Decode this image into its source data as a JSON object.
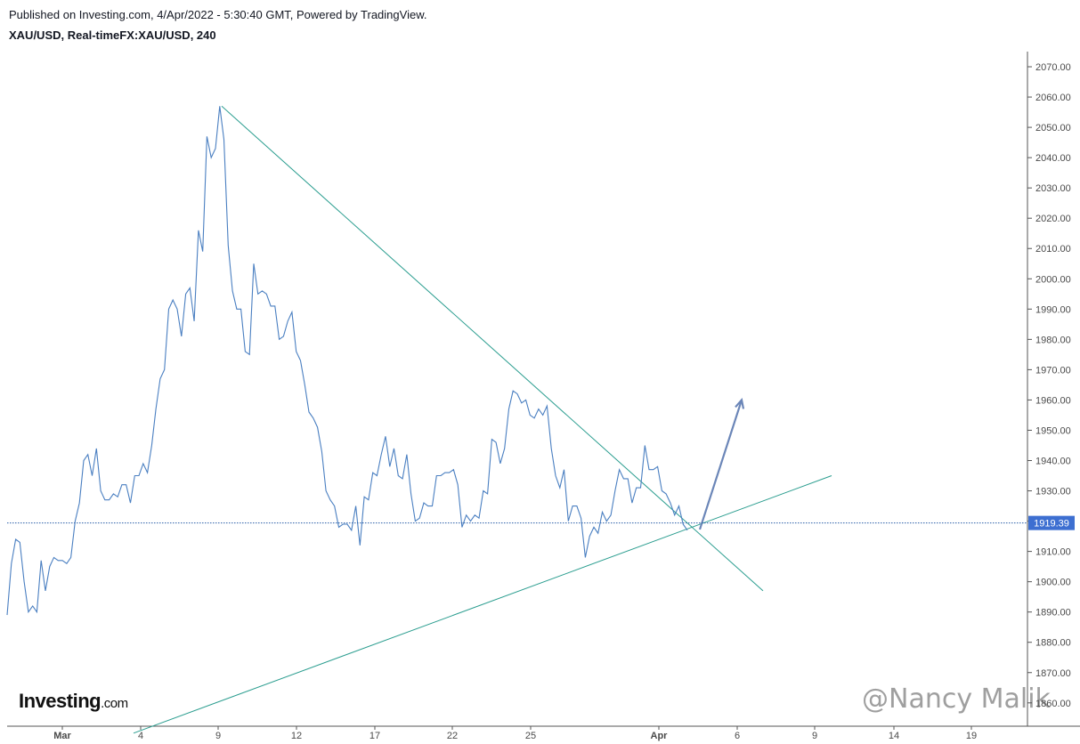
{
  "header": {
    "published": "Published on Investing.com, 4/Apr/2022 - 5:30:40 GMT, Powered by TradingView.",
    "symbol_line": "XAU/USD, Real-timeFX:XAU/USD, 240"
  },
  "brand": {
    "name": "Investing",
    "suffix": ".com"
  },
  "watermark": "@Nancy Malik",
  "colors": {
    "price_line": "#4a7fc1",
    "trendline": "#2a9d8f",
    "arrow": "#6b86b8",
    "price_marker_bg": "#3d6fd1",
    "price_marker_text": "#ffffff",
    "dotted_line": "#2b5fa8"
  },
  "chart_data": {
    "type": "line",
    "current_price": "1919.39",
    "current_price_value": 1919.39,
    "ylim": [
      1850,
      2080
    ],
    "y_ticks": [
      "2070.00",
      "2060.00",
      "2050.00",
      "2040.00",
      "2030.00",
      "2020.00",
      "2010.00",
      "2000.00",
      "1990.00",
      "1980.00",
      "1970.00",
      "1960.00",
      "1950.00",
      "1940.00",
      "1930.00",
      "1920.00",
      "1910.00",
      "1900.00",
      "1890.00",
      "1880.00",
      "1870.00",
      "1860.00"
    ],
    "x_ticks": [
      {
        "label": "Mar",
        "bold": true
      },
      {
        "label": "4",
        "bold": false
      },
      {
        "label": "9",
        "bold": false
      },
      {
        "label": "12",
        "bold": false
      },
      {
        "label": "17",
        "bold": false
      },
      {
        "label": "22",
        "bold": false
      },
      {
        "label": "25",
        "bold": false
      },
      {
        "label": "Apr",
        "bold": true
      },
      {
        "label": "6",
        "bold": false
      },
      {
        "label": "9",
        "bold": false
      },
      {
        "label": "14",
        "bold": false
      },
      {
        "label": "19",
        "bold": false
      }
    ],
    "series": [
      {
        "values": [
          1889,
          1906,
          1914,
          1913,
          1900,
          1890,
          1892,
          1890,
          1907,
          1897,
          1905,
          1908,
          1907,
          1907,
          1906,
          1908,
          1920,
          1926,
          1940,
          1942,
          1935,
          1944,
          1930,
          1927,
          1927,
          1929,
          1928,
          1932,
          1932,
          1926,
          1935,
          1935,
          1939,
          1936,
          1945,
          1957,
          1967,
          1970,
          1990,
          1993,
          1990,
          1981,
          1995,
          1997,
          1986,
          2016,
          2009,
          2047,
          2040,
          2043,
          2057,
          2046,
          2011,
          1996,
          1990,
          1990,
          1976,
          1975,
          2005,
          1995,
          1996,
          1995,
          1991,
          1991,
          1980,
          1981,
          1986,
          1989,
          1976,
          1973,
          1965,
          1956,
          1954,
          1951,
          1943,
          1930,
          1927,
          1925,
          1918,
          1919,
          1919,
          1917,
          1925,
          1912,
          1928,
          1927,
          1936,
          1935,
          1942,
          1948,
          1938,
          1944,
          1935,
          1934,
          1942,
          1929,
          1920,
          1921,
          1926,
          1925,
          1925,
          1935,
          1935,
          1936,
          1936,
          1937,
          1932,
          1918,
          1922,
          1920,
          1922,
          1921,
          1930,
          1929,
          1947,
          1946,
          1939,
          1944,
          1957,
          1963,
          1962,
          1959,
          1960,
          1955,
          1954,
          1957,
          1955,
          1958,
          1944,
          1935,
          1931,
          1937,
          1920,
          1925,
          1925,
          1921,
          1908,
          1915,
          1918,
          1916,
          1923,
          1920,
          1922,
          1930,
          1937,
          1934,
          1934,
          1926,
          1931,
          1931,
          1945,
          1937,
          1937,
          1938,
          1930,
          1929,
          1926,
          1922,
          1925,
          1919,
          1917
        ]
      }
    ],
    "annotations": {
      "descending_trendline": [
        [
          2057,
          1
        ],
        [
          1897,
          2
        ]
      ],
      "ascending_trendline": [
        [
          1850,
          1
        ],
        [
          1935,
          2
        ]
      ],
      "arrow": {
        "from": 1919,
        "to": 1960
      }
    }
  }
}
